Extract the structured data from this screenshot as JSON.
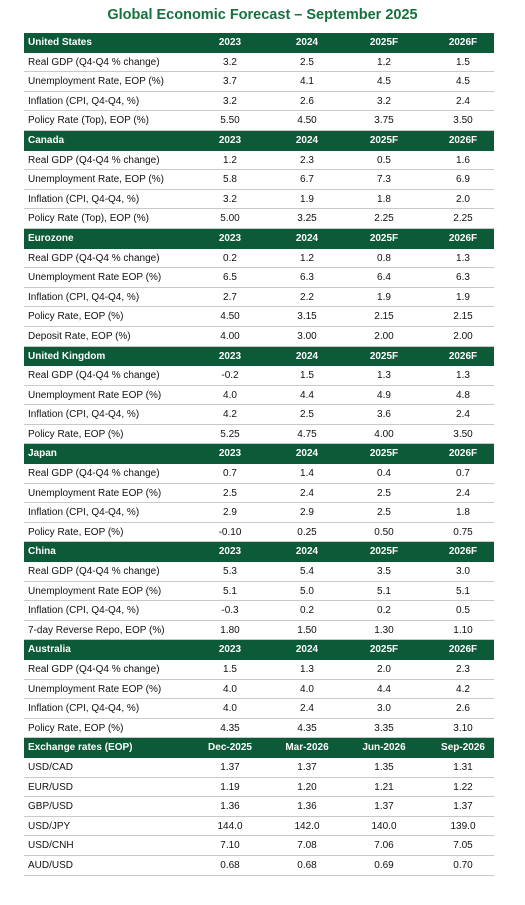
{
  "title": "Global Economic Forecast – September 2025",
  "sections": [
    {
      "header": [
        "United States",
        "2023",
        "2024",
        "2025F",
        "2026F"
      ],
      "rows": [
        [
          "Real GDP (Q4-Q4 % change)",
          "3.2",
          "2.5",
          "1.2",
          "1.5"
        ],
        [
          "Unemployment Rate, EOP (%)",
          "3.7",
          "4.1",
          "4.5",
          "4.5"
        ],
        [
          "Inflation (CPI, Q4-Q4, %)",
          "3.2",
          "2.6",
          "3.2",
          "2.4"
        ],
        [
          "Policy Rate (Top), EOP (%)",
          "5.50",
          "4.50",
          "3.75",
          "3.50"
        ]
      ]
    },
    {
      "header": [
        "Canada",
        "2023",
        "2024",
        "2025F",
        "2026F"
      ],
      "rows": [
        [
          "Real GDP (Q4-Q4 % change)",
          "1.2",
          "2.3",
          "0.5",
          "1.6"
        ],
        [
          "Unemployment Rate, EOP (%)",
          "5.8",
          "6.7",
          "7.3",
          "6.9"
        ],
        [
          "Inflation (CPI, Q4-Q4, %)",
          "3.2",
          "1.9",
          "1.8",
          "2.0"
        ],
        [
          "Policy Rate (Top), EOP (%)",
          "5.00",
          "3.25",
          "2.25",
          "2.25"
        ]
      ]
    },
    {
      "header": [
        "Eurozone",
        "2023",
        "2024",
        "2025F",
        "2026F"
      ],
      "rows": [
        [
          "Real GDP (Q4-Q4 % change)",
          "0.2",
          "1.2",
          "0.8",
          "1.3"
        ],
        [
          "Unemployment Rate EOP (%)",
          "6.5",
          "6.3",
          "6.4",
          "6.3"
        ],
        [
          "Inflation (CPI, Q4-Q4, %)",
          "2.7",
          "2.2",
          "1.9",
          "1.9"
        ],
        [
          "Policy Rate, EOP (%)",
          "4.50",
          "3.15",
          "2.15",
          "2.15"
        ],
        [
          "Deposit Rate, EOP (%)",
          "4.00",
          "3.00",
          "2.00",
          "2.00"
        ]
      ]
    },
    {
      "header": [
        "United Kingdom",
        "2023",
        "2024",
        "2025F",
        "2026F"
      ],
      "rows": [
        [
          "Real GDP (Q4-Q4 % change)",
          "-0.2",
          "1.5",
          "1.3",
          "1.3"
        ],
        [
          "Unemployment Rate EOP (%)",
          "4.0",
          "4.4",
          "4.9",
          "4.8"
        ],
        [
          "Inflation (CPI, Q4-Q4, %)",
          "4.2",
          "2.5",
          "3.6",
          "2.4"
        ],
        [
          "Policy Rate, EOP (%)",
          "5.25",
          "4.75",
          "4.00",
          "3.50"
        ]
      ]
    },
    {
      "header": [
        "Japan",
        "2023",
        "2024",
        "2025F",
        "2026F"
      ],
      "rows": [
        [
          "Real GDP (Q4-Q4 % change)",
          "0.7",
          "1.4",
          "0.4",
          "0.7"
        ],
        [
          "Unemployment Rate EOP (%)",
          "2.5",
          "2.4",
          "2.5",
          "2.4"
        ],
        [
          "Inflation (CPI, Q4-Q4, %)",
          "2.9",
          "2.9",
          "2.5",
          "1.8"
        ],
        [
          "Policy Rate, EOP (%)",
          "-0.10",
          "0.25",
          "0.50",
          "0.75"
        ]
      ]
    },
    {
      "header": [
        "China",
        "2023",
        "2024",
        "2025F",
        "2026F"
      ],
      "rows": [
        [
          "Real GDP (Q4-Q4 % change)",
          "5.3",
          "5.4",
          "3.5",
          "3.0"
        ],
        [
          "Unemployment Rate EOP (%)",
          "5.1",
          "5.0",
          "5.1",
          "5.1"
        ],
        [
          "Inflation (CPI, Q4-Q4, %)",
          "-0.3",
          "0.2",
          "0.2",
          "0.5"
        ],
        [
          "7-day Reverse Repo, EOP (%)",
          "1.80",
          "1.50",
          "1.30",
          "1.10"
        ]
      ]
    },
    {
      "header": [
        "Australia",
        "2023",
        "2024",
        "2025F",
        "2026F"
      ],
      "rows": [
        [
          "Real GDP (Q4-Q4 % change)",
          "1.5",
          "1.3",
          "2.0",
          "2.3"
        ],
        [
          "Unemployment Rate EOP (%)",
          "4.0",
          "4.0",
          "4.4",
          "4.2"
        ],
        [
          "Inflation (CPI, Q4-Q4, %)",
          "4.0",
          "2.4",
          "3.0",
          "2.6"
        ],
        [
          "Policy Rate, EOP (%)",
          "4.35",
          "4.35",
          "3.35",
          "3.10"
        ]
      ]
    },
    {
      "header": [
        "Exchange rates (EOP)",
        "Dec-2025",
        "Mar-2026",
        "Jun-2026",
        "Sep-2026"
      ],
      "rows": [
        [
          "USD/CAD",
          "1.37",
          "1.37",
          "1.35",
          "1.31"
        ],
        [
          "EUR/USD",
          "1.19",
          "1.20",
          "1.21",
          "1.22"
        ],
        [
          "GBP/USD",
          "1.36",
          "1.36",
          "1.37",
          "1.37"
        ],
        [
          "USD/JPY",
          "144.0",
          "142.0",
          "140.0",
          "139.0"
        ],
        [
          "USD/CNH",
          "7.10",
          "7.08",
          "7.06",
          "7.05"
        ],
        [
          "AUD/USD",
          "0.68",
          "0.68",
          "0.69",
          "0.70"
        ]
      ]
    }
  ]
}
